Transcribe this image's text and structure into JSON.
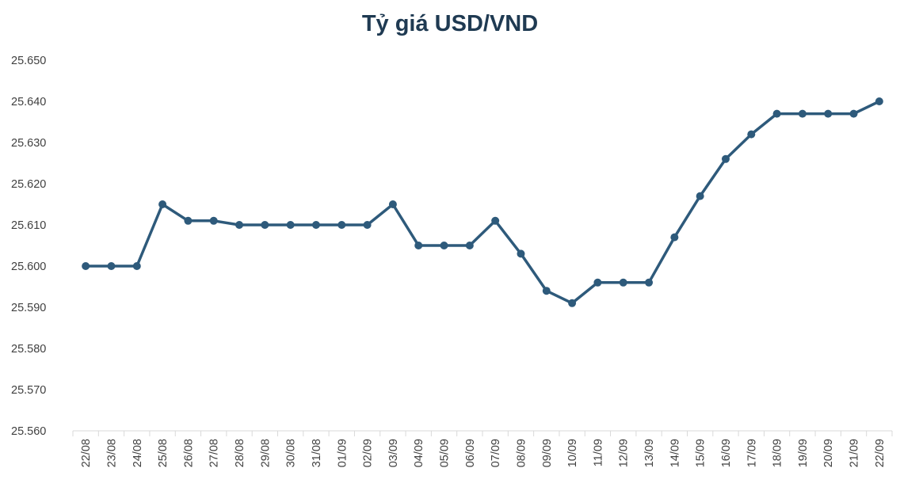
{
  "chart_data": {
    "type": "line",
    "title": "Tỷ giá USD/VND",
    "xlabel": "",
    "ylabel": "",
    "ylim": [
      25560,
      25650
    ],
    "y_ticks": [
      "25.560",
      "25.570",
      "25.580",
      "25.590",
      "25.600",
      "25.610",
      "25.620",
      "25.630",
      "25.640",
      "25.650"
    ],
    "categories": [
      "22/08",
      "23/08",
      "24/08",
      "25/08",
      "26/08",
      "27/08",
      "28/08",
      "29/08",
      "30/08",
      "31/08",
      "01/09",
      "02/09",
      "03/09",
      "04/09",
      "05/09",
      "06/09",
      "07/09",
      "08/09",
      "09/09",
      "10/09",
      "11/09",
      "12/09",
      "13/09",
      "14/09",
      "15/09",
      "16/09",
      "17/09",
      "18/09",
      "19/09",
      "20/09",
      "21/09",
      "22/09"
    ],
    "series": [
      {
        "values": [
          25600,
          25600,
          25600,
          25615,
          25611,
          25611,
          25610,
          25610,
          25610,
          25610,
          25610,
          25610,
          25615,
          25605,
          25605,
          25605,
          25611,
          25603,
          25594,
          25591,
          25596,
          25596,
          25596,
          25607,
          25617,
          25626,
          25632,
          25637,
          25637,
          25637,
          25637,
          25640
        ],
        "color": "#2e5a7b"
      }
    ],
    "grid": false,
    "legend": "none"
  }
}
